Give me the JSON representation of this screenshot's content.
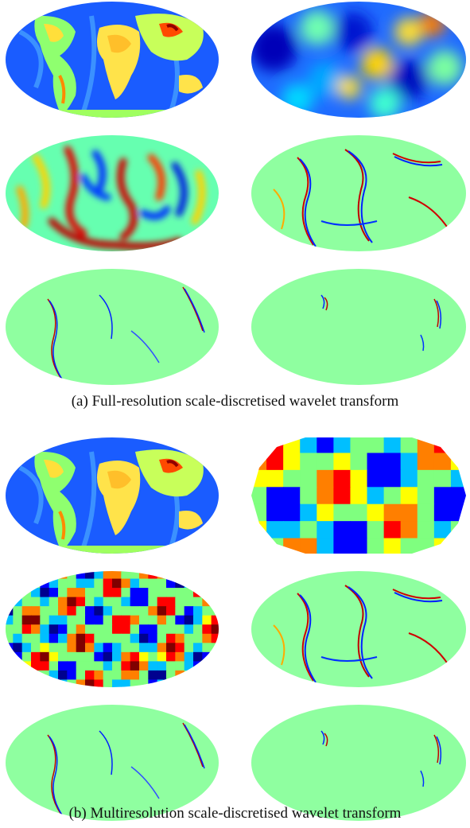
{
  "figure": {
    "captions": {
      "a": "(a) Full-resolution scale-discretised wavelet transform",
      "b": "(b) Multiresolution scale-discretised wavelet transform"
    },
    "colormap": [
      "#00008f",
      "#0000ff",
      "#00bfff",
      "#7fff7f",
      "#ffff00",
      "#ff7f00",
      "#ff0000",
      "#800000"
    ],
    "panel_descriptions": {
      "earth": "Earth topography map in Mollweide projection",
      "scaling": "low-resolution scaling coefficients",
      "wavelet_1": "wavelet coefficients, scale 1",
      "wavelet_2": "wavelet coefficients, scale 2",
      "wavelet_3": "wavelet coefficients, scale 3",
      "wavelet_4": "wavelet coefficients, scale 4"
    }
  }
}
